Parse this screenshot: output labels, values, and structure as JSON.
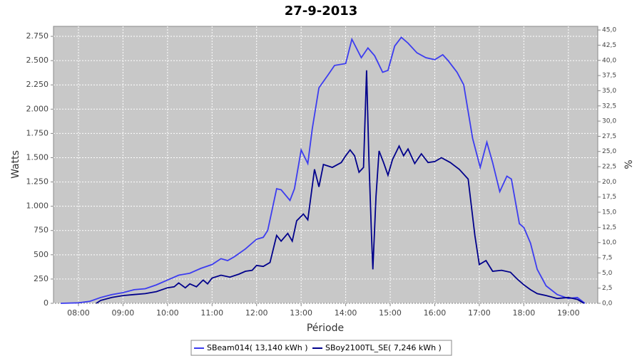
{
  "chart_data": {
    "type": "line",
    "title": "27-9-2013",
    "xlabel": "Période",
    "ylabel": "Watts",
    "y2label": "%",
    "xlim": [
      7.44,
      19.66
    ],
    "xticks": [
      {
        "value": 8,
        "label": "08:00"
      },
      {
        "value": 9,
        "label": "09:00"
      },
      {
        "value": 10,
        "label": "10:00"
      },
      {
        "value": 11,
        "label": "11:00"
      },
      {
        "value": 12,
        "label": "12:00"
      },
      {
        "value": 13,
        "label": "13:00"
      },
      {
        "value": 14,
        "label": "14:00"
      },
      {
        "value": 15,
        "label": "15:00"
      },
      {
        "value": 16,
        "label": "16:00"
      },
      {
        "value": 17,
        "label": "17:00"
      },
      {
        "value": 18,
        "label": "18:00"
      },
      {
        "value": 19,
        "label": "19:00"
      }
    ],
    "ylim": [
      0,
      2853
    ],
    "yticks": [
      0,
      250,
      500,
      750,
      {
        "value": 1000,
        "label": "1.000"
      },
      {
        "value": 1250,
        "label": "1.250"
      },
      {
        "value": 1500,
        "label": "1.500"
      },
      {
        "value": 1750,
        "label": "1.750"
      },
      {
        "value": 2000,
        "label": "2.000"
      },
      {
        "value": 2250,
        "label": "2.250"
      },
      {
        "value": 2500,
        "label": "2.500"
      },
      {
        "value": 2750,
        "label": "2.750"
      }
    ],
    "y2lim": [
      0,
      45.6
    ],
    "y2ticks": [
      {
        "value": 0,
        "label": "0,0"
      },
      {
        "value": 2.5,
        "label": "2,5"
      },
      {
        "value": 5,
        "label": "5,0"
      },
      {
        "value": 7.5,
        "label": "7,5"
      },
      {
        "value": 10,
        "label": "10,0"
      },
      {
        "value": 12.5,
        "label": "12,5"
      },
      {
        "value": 15,
        "label": "15,0"
      },
      {
        "value": 17.5,
        "label": "17,5"
      },
      {
        "value": 20,
        "label": "20,0"
      },
      {
        "value": 22.5,
        "label": "22,5"
      },
      {
        "value": 25,
        "label": "25,0"
      },
      {
        "value": 27.5,
        "label": "27,5"
      },
      {
        "value": 30,
        "label": "30,0"
      },
      {
        "value": 32.5,
        "label": "32,5"
      },
      {
        "value": 35,
        "label": "35,0"
      },
      {
        "value": 37.5,
        "label": "37,5"
      },
      {
        "value": 40,
        "label": "40,0"
      },
      {
        "value": 42.5,
        "label": "42,5"
      },
      {
        "value": 45,
        "label": "45,0"
      }
    ],
    "grid": true,
    "legend": "bottom",
    "series": [
      {
        "name": "SBeam014( 13,140 kWh )",
        "color": "#3c3cf0",
        "x": [
          7.6,
          8.0,
          8.25,
          8.5,
          8.75,
          9.0,
          9.25,
          9.5,
          9.75,
          10.0,
          10.25,
          10.5,
          10.75,
          11.0,
          11.2,
          11.35,
          11.5,
          11.75,
          12.0,
          12.15,
          12.25,
          12.45,
          12.55,
          12.75,
          12.85,
          13.0,
          13.15,
          13.25,
          13.4,
          13.6,
          13.75,
          14.0,
          14.14,
          14.35,
          14.5,
          14.65,
          14.83,
          14.95,
          15.1,
          15.25,
          15.4,
          15.6,
          15.8,
          16.0,
          16.18,
          16.3,
          16.5,
          16.65,
          16.85,
          17.02,
          17.17,
          17.3,
          17.46,
          17.62,
          17.72,
          17.9,
          18.0,
          18.15,
          18.3,
          18.5,
          18.75,
          19.0,
          19.2,
          19.37
        ],
        "values": [
          0,
          5,
          20,
          60,
          90,
          110,
          140,
          150,
          190,
          240,
          290,
          310,
          360,
          400,
          460,
          440,
          480,
          560,
          660,
          680,
          750,
          1180,
          1170,
          1060,
          1180,
          1580,
          1440,
          1800,
          2220,
          2350,
          2450,
          2470,
          2720,
          2530,
          2630,
          2550,
          2380,
          2400,
          2650,
          2740,
          2680,
          2580,
          2530,
          2510,
          2560,
          2500,
          2380,
          2250,
          1700,
          1400,
          1660,
          1450,
          1150,
          1310,
          1280,
          820,
          780,
          620,
          350,
          180,
          90,
          50,
          60,
          0
        ]
      },
      {
        "name": "SBoy2100TL_SE( 7,246 kWh )",
        "color": "#00008b",
        "x": [
          8.4,
          8.5,
          8.75,
          9.0,
          9.25,
          9.5,
          9.75,
          10.0,
          10.15,
          10.25,
          10.4,
          10.5,
          10.65,
          10.8,
          10.9,
          11.0,
          11.2,
          11.4,
          11.6,
          11.75,
          11.9,
          12.0,
          12.15,
          12.3,
          12.45,
          12.55,
          12.7,
          12.8,
          12.9,
          13.05,
          13.15,
          13.3,
          13.4,
          13.5,
          13.7,
          13.9,
          14.0,
          14.1,
          14.2,
          14.3,
          14.4,
          14.47,
          14.52,
          14.58,
          14.61,
          14.68,
          14.75,
          14.85,
          14.95,
          15.05,
          15.2,
          15.3,
          15.4,
          15.55,
          15.7,
          15.85,
          16.0,
          16.15,
          16.35,
          16.55,
          16.75,
          16.9,
          17.0,
          17.15,
          17.3,
          17.5,
          17.7,
          17.85,
          18.0,
          18.15,
          18.3,
          18.5,
          18.75,
          19.0,
          19.2,
          19.35
        ],
        "values": [
          0,
          30,
          60,
          80,
          90,
          100,
          120,
          160,
          170,
          210,
          160,
          200,
          170,
          240,
          200,
          260,
          290,
          270,
          300,
          330,
          340,
          390,
          380,
          420,
          700,
          640,
          720,
          640,
          850,
          920,
          860,
          1380,
          1200,
          1430,
          1400,
          1450,
          1520,
          1580,
          1520,
          1350,
          1400,
          2400,
          1500,
          700,
          350,
          1100,
          1570,
          1450,
          1320,
          1480,
          1620,
          1520,
          1590,
          1440,
          1540,
          1450,
          1460,
          1500,
          1450,
          1380,
          1280,
          700,
          400,
          440,
          330,
          340,
          320,
          250,
          190,
          140,
          100,
          80,
          50,
          60,
          40,
          0
        ]
      }
    ]
  }
}
